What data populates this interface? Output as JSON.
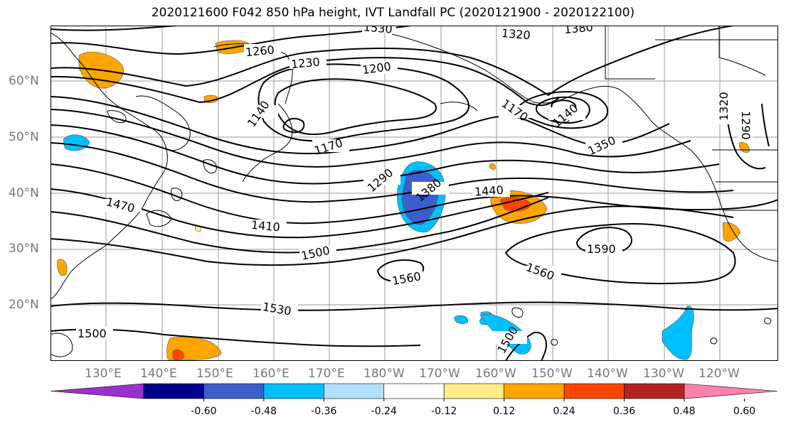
{
  "title": "2020121600 F042 850 hPa height, IVT Landfall PC (2020121900 - 2020122100)",
  "lat_labels": [
    "60°N",
    "50°N",
    "40°N",
    "30°N",
    "20°N"
  ],
  "lon_labels": [
    "130°E",
    "140°E",
    "150°E",
    "160°E",
    "170°E",
    "180°W",
    "170°W",
    "160°W",
    "150°W",
    "140°W",
    "130°W",
    "120°W"
  ],
  "contour_labels": [
    "1530",
    "1320",
    "1380",
    "1260",
    "1230",
    "1200",
    "1140",
    "1170",
    "1140",
    "1170",
    "1350",
    "1320",
    "1290",
    "1290",
    "1380",
    "1440",
    "1470",
    "1410",
    "1500",
    "1590",
    "1560",
    "1560",
    "1530",
    "1500",
    "1500"
  ],
  "colorbar": {
    "colors": [
      "#9932CC",
      "#00008B",
      "#3A5FCD",
      "#00BFFF",
      "#B0E2FF",
      "#FFFFFF",
      "#FFEC8B",
      "#FFA500",
      "#FF4500",
      "#B22222",
      "#FF82AB"
    ],
    "tick_labels": [
      "-0.60",
      "-0.48",
      "-0.36",
      "-0.24",
      "-0.12",
      "0.12",
      "0.24",
      "0.36",
      "0.48",
      "0.60"
    ]
  }
}
